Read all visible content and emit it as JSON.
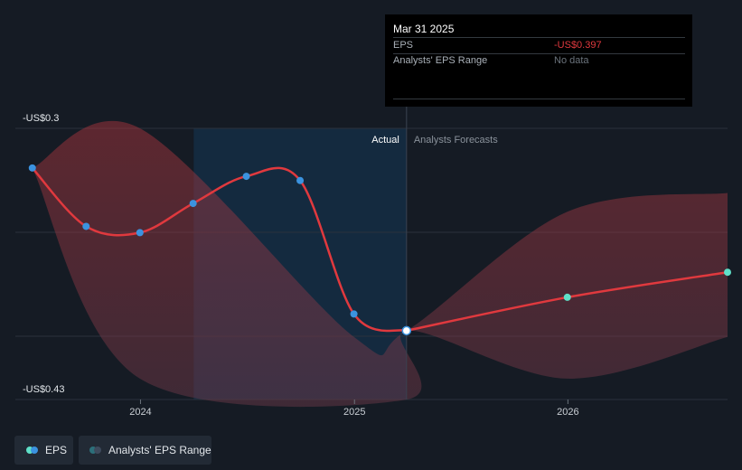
{
  "chart_data": {
    "type": "line",
    "y_labels": {
      "top": "-US$0.3",
      "bottom": "-US$0.43"
    },
    "ylim": [
      -0.43,
      -0.3
    ],
    "x_ticks": [
      {
        "label": "2024",
        "x": "2024-01-01"
      },
      {
        "label": "2025",
        "x": "2025-01-01"
      },
      {
        "label": "2026",
        "x": "2026-01-01"
      }
    ],
    "xlim": [
      "2023-06-01",
      "2026-10-01"
    ],
    "region_labels": {
      "actual": "Actual",
      "forecast": "Analysts Forecasts"
    },
    "actual_region_start": "2024-04-01",
    "forecast_start": "2025-03-31",
    "series": [
      {
        "name": "EPS",
        "color": "#e0393e",
        "actual": [
          {
            "x": "2023-06-30",
            "y": -0.319
          },
          {
            "x": "2023-09-30",
            "y": -0.347
          },
          {
            "x": "2023-12-31",
            "y": -0.35
          },
          {
            "x": "2024-03-31",
            "y": -0.336
          },
          {
            "x": "2024-06-30",
            "y": -0.323
          },
          {
            "x": "2024-09-30",
            "y": -0.325
          },
          {
            "x": "2024-12-31",
            "y": -0.389
          },
          {
            "x": "2025-03-31",
            "y": -0.397
          }
        ],
        "forecast": [
          {
            "x": "2025-03-31",
            "y": -0.397
          },
          {
            "x": "2025-12-31",
            "y": -0.381
          },
          {
            "x": "2026-10-01",
            "y": -0.369
          }
        ]
      }
    ],
    "range_band": {
      "name": "Analysts' EPS Range",
      "upper": [
        {
          "x": "2023-06-30",
          "y": -0.319
        },
        {
          "x": "2023-12-31",
          "y": -0.3
        },
        {
          "x": "2024-12-31",
          "y": -0.4
        },
        {
          "x": "2025-03-31",
          "y": -0.397
        },
        {
          "x": "2025-12-31",
          "y": -0.34
        },
        {
          "x": "2026-10-01",
          "y": -0.331
        }
      ],
      "lower": [
        {
          "x": "2026-10-01",
          "y": -0.4
        },
        {
          "x": "2025-12-31",
          "y": -0.42
        },
        {
          "x": "2025-03-31",
          "y": -0.397
        },
        {
          "x": "2025-03-31",
          "y": -0.43
        },
        {
          "x": "2023-12-31",
          "y": -0.42
        },
        {
          "x": "2023-06-30",
          "y": -0.319
        }
      ]
    }
  },
  "tooltip": {
    "date": "Mar 31 2025",
    "rows": [
      {
        "label": "EPS",
        "value": "-US$0.397",
        "value_color": "#e0393e"
      },
      {
        "label": "Analysts' EPS Range",
        "value": "No data",
        "value_color": "#6b737c"
      }
    ]
  },
  "legend": [
    {
      "label": "EPS"
    },
    {
      "label": "Analysts' EPS Range"
    }
  ],
  "colors": {
    "background": "#151b24",
    "actual_region": "#142a3f",
    "eps_line": "#e0393e",
    "range_band": "#7a2f38",
    "forecast_dot": "#5fe0c8",
    "actual_dot": "#3b93e0"
  }
}
